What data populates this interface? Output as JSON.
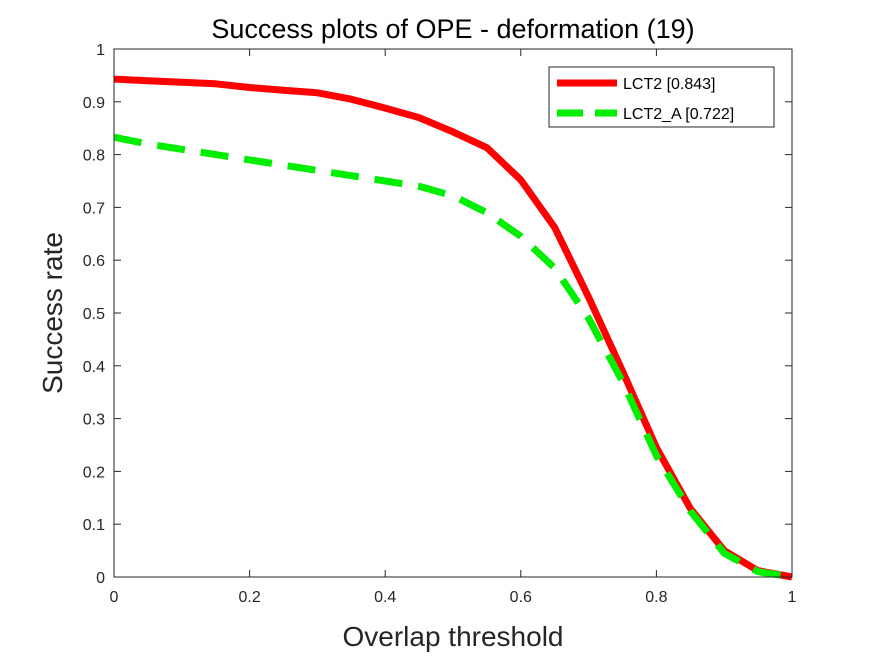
{
  "chart_data": {
    "type": "line",
    "title": "Success plots of OPE - deformation (19)",
    "xlabel": "Overlap threshold",
    "ylabel": "Success rate",
    "xlim": [
      0,
      1
    ],
    "ylim": [
      0,
      1
    ],
    "xticks": [
      0,
      0.2,
      0.4,
      0.6,
      0.8,
      1
    ],
    "xtick_labels": [
      "0",
      "0.2",
      "0.4",
      "0.6",
      "0.8",
      "1"
    ],
    "yticks": [
      0,
      0.1,
      0.2,
      0.3,
      0.4,
      0.5,
      0.6,
      0.7,
      0.8,
      0.9,
      1
    ],
    "ytick_labels": [
      "0",
      "0.1",
      "0.2",
      "0.3",
      "0.4",
      "0.5",
      "0.6",
      "0.7",
      "0.8",
      "0.9",
      "1"
    ],
    "grid": false,
    "legend_position": "top-right",
    "x": [
      0,
      0.05,
      0.1,
      0.15,
      0.2,
      0.25,
      0.3,
      0.35,
      0.4,
      0.45,
      0.5,
      0.55,
      0.6,
      0.65,
      0.7,
      0.75,
      0.8,
      0.85,
      0.9,
      0.95,
      1
    ],
    "series": [
      {
        "name": "LCT2 [0.843]",
        "color": "#ff0000",
        "style": "solid",
        "values": [
          0.943,
          0.94,
          0.937,
          0.934,
          0.927,
          0.922,
          0.917,
          0.905,
          0.888,
          0.87,
          0.843,
          0.813,
          0.752,
          0.662,
          0.53,
          0.39,
          0.245,
          0.13,
          0.05,
          0.012,
          0.0
        ]
      },
      {
        "name": "LCT2_A [0.722]",
        "color": "#00ee00",
        "style": "dashed",
        "values": [
          0.833,
          0.82,
          0.81,
          0.8,
          0.79,
          0.78,
          0.77,
          0.76,
          0.75,
          0.74,
          0.722,
          0.69,
          0.645,
          0.585,
          0.49,
          0.37,
          0.23,
          0.125,
          0.045,
          0.01,
          0.0
        ]
      }
    ]
  }
}
